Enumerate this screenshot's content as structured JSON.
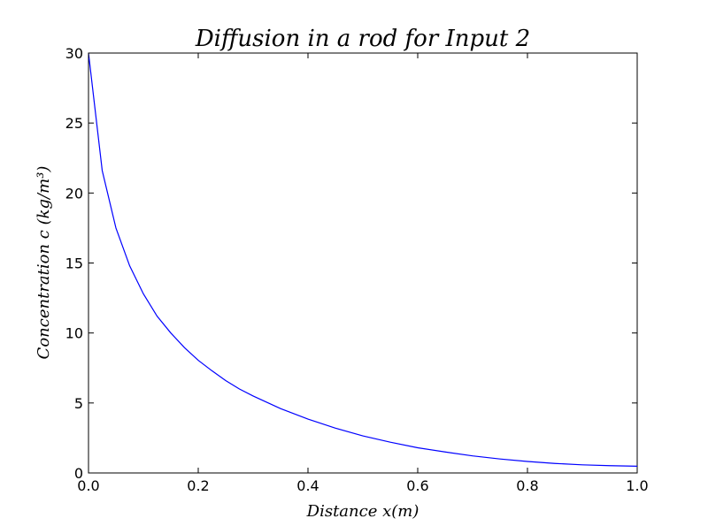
{
  "chart_data": {
    "type": "line",
    "title": "Diffusion in a rod for Input 2",
    "xlabel": "Distance x(m)",
    "ylabel": "Concentration c (kg/m³)",
    "xlim": [
      0.0,
      1.0
    ],
    "ylim": [
      0,
      30
    ],
    "x_ticks": [
      "0.0",
      "0.2",
      "0.4",
      "0.6",
      "0.8",
      "1.0"
    ],
    "y_ticks": [
      "0",
      "5",
      "10",
      "15",
      "20",
      "25",
      "30"
    ],
    "grid": false,
    "series": [
      {
        "color": "#0000ff",
        "x": [
          0.0,
          0.025,
          0.05,
          0.075,
          0.1,
          0.125,
          0.15,
          0.175,
          0.2,
          0.225,
          0.25,
          0.275,
          0.3,
          0.35,
          0.4,
          0.45,
          0.5,
          0.55,
          0.6,
          0.65,
          0.7,
          0.75,
          0.8,
          0.85,
          0.9,
          0.95,
          1.0
        ],
        "y": [
          30.0,
          21.6,
          17.5,
          14.8,
          12.8,
          11.2,
          10.0,
          8.95,
          8.05,
          7.3,
          6.6,
          6.0,
          5.5,
          4.6,
          3.85,
          3.2,
          2.65,
          2.2,
          1.8,
          1.5,
          1.22,
          1.0,
          0.82,
          0.68,
          0.58,
          0.52,
          0.48
        ]
      }
    ]
  }
}
